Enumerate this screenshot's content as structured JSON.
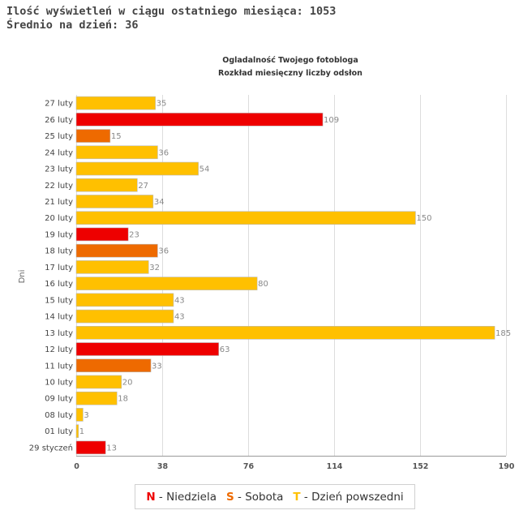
{
  "stats": {
    "views_line": "Ilość wyświetleń w ciągu ostatniego miesiąca: 1053",
    "avg_line": "Średnio na dzień: 36"
  },
  "colors": {
    "sunday": "#ee0000",
    "saturday": "#ee6a00",
    "weekday": "#ffc000",
    "grid": "#dddddd",
    "axis": "#999999"
  },
  "chart_data": {
    "type": "bar",
    "orientation": "horizontal",
    "title": "Ogladalność Twojego fotobloga",
    "subtitle": "Rozkład miesięczny liczby odsłon",
    "ylabel": "Dni",
    "xlabel": "",
    "xlim": [
      0,
      190
    ],
    "xticks": [
      "0",
      "38",
      "76",
      "114",
      "152",
      "190"
    ],
    "grid": true,
    "legend_position": "bottom",
    "categories": [
      "27 luty",
      "26 luty",
      "25 luty",
      "24 luty",
      "23 luty",
      "22 luty",
      "21 luty",
      "20 luty",
      "19 luty",
      "18 luty",
      "17 luty",
      "16 luty",
      "15 luty",
      "14 luty",
      "13 luty",
      "12 luty",
      "11 luty",
      "10 luty",
      "09 luty",
      "08 luty",
      "01 luty",
      "29 styczeń"
    ],
    "values": [
      35,
      109,
      15,
      36,
      54,
      27,
      34,
      150,
      23,
      36,
      32,
      80,
      43,
      43,
      185,
      63,
      33,
      20,
      18,
      3,
      1,
      13
    ],
    "day_types": [
      "T",
      "N",
      "S",
      "T",
      "T",
      "T",
      "T",
      "T",
      "N",
      "S",
      "T",
      "T",
      "T",
      "T",
      "T",
      "N",
      "S",
      "T",
      "T",
      "T",
      "T",
      "N"
    ],
    "legend": [
      {
        "letter": "N",
        "label": " - Niedziela",
        "color": "#ee0000"
      },
      {
        "letter": "S",
        "label": " - Sobota",
        "color": "#ee6a00"
      },
      {
        "letter": "T",
        "label": " - Dzień powszedni",
        "color": "#ffc000"
      }
    ]
  }
}
